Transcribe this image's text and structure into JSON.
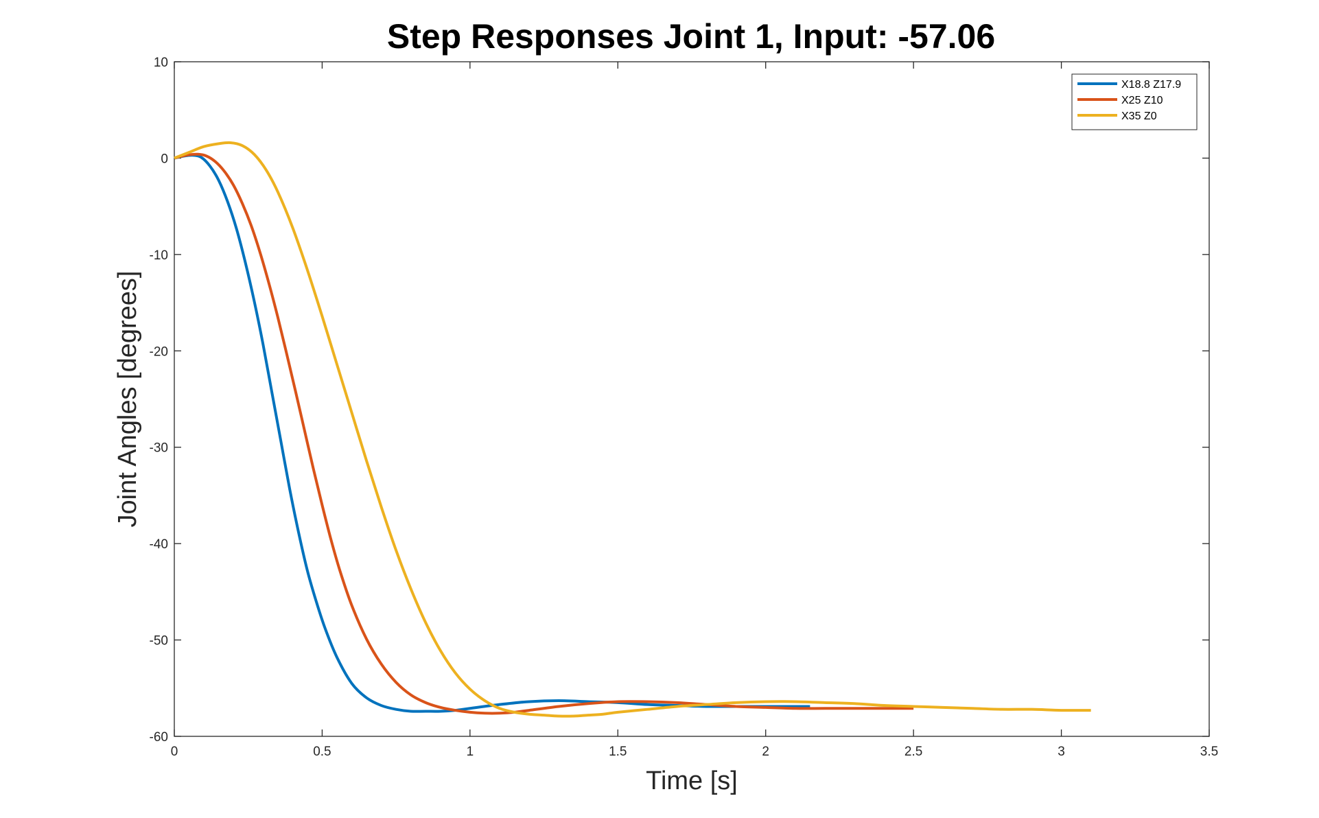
{
  "chart_data": {
    "type": "line",
    "title": "Step Responses Joint 1, Input: -57.06",
    "xlabel": "Time [s]",
    "ylabel": "Joint Angles [degrees]",
    "xlim": [
      0,
      3.5
    ],
    "ylim": [
      -60,
      10
    ],
    "xticks": [
      0,
      0.5,
      1,
      1.5,
      2,
      2.5,
      3,
      3.5
    ],
    "xtick_labels": [
      "0",
      "0.5",
      "1",
      "1.5",
      "2",
      "2.5",
      "3",
      "3.5"
    ],
    "yticks": [
      10,
      0,
      -10,
      -20,
      -30,
      -40,
      -50,
      -60
    ],
    "ytick_labels": [
      "10",
      "0",
      "-10",
      "-20",
      "-30",
      "-40",
      "-50",
      "-60"
    ],
    "grid": false,
    "legend_position": "top-right",
    "series": [
      {
        "name": "X18.8 Z17.9",
        "color": "#0072BD",
        "x": [
          0,
          0.03,
          0.06,
          0.09,
          0.12,
          0.15,
          0.18,
          0.21,
          0.24,
          0.27,
          0.3,
          0.33,
          0.36,
          0.39,
          0.42,
          0.45,
          0.48,
          0.51,
          0.55,
          0.6,
          0.65,
          0.7,
          0.75,
          0.8,
          0.85,
          0.9,
          0.95,
          1.0,
          1.1,
          1.2,
          1.3,
          1.4,
          1.5,
          1.6,
          1.7,
          1.8,
          1.9,
          2.0,
          2.1,
          2.15
        ],
        "y": [
          0,
          0.2,
          0.3,
          0.1,
          -0.8,
          -2.3,
          -4.5,
          -7.3,
          -10.8,
          -14.8,
          -19.3,
          -24.3,
          -29.3,
          -34.3,
          -38.8,
          -42.8,
          -46.0,
          -48.8,
          -51.8,
          -54.5,
          -56.0,
          -56.8,
          -57.2,
          -57.4,
          -57.4,
          -57.4,
          -57.3,
          -57.1,
          -56.7,
          -56.4,
          -56.3,
          -56.4,
          -56.5,
          -56.7,
          -56.8,
          -56.9,
          -56.9,
          -56.9,
          -56.9,
          -56.9
        ]
      },
      {
        "name": "X25 Z10",
        "color": "#D95319",
        "x": [
          0,
          0.04,
          0.08,
          0.11,
          0.14,
          0.17,
          0.2,
          0.23,
          0.26,
          0.29,
          0.32,
          0.35,
          0.38,
          0.41,
          0.44,
          0.47,
          0.5,
          0.53,
          0.56,
          0.6,
          0.65,
          0.7,
          0.75,
          0.8,
          0.85,
          0.9,
          0.95,
          1.0,
          1.05,
          1.1,
          1.15,
          1.2,
          1.3,
          1.4,
          1.5,
          1.6,
          1.7,
          1.8,
          1.9,
          2.0,
          2.1,
          2.2,
          2.3,
          2.4,
          2.5
        ],
        "y": [
          0,
          0.3,
          0.4,
          0.2,
          -0.4,
          -1.4,
          -2.8,
          -4.7,
          -7.0,
          -9.8,
          -13.0,
          -16.5,
          -20.3,
          -24.2,
          -28.2,
          -32.2,
          -36.0,
          -39.6,
          -42.8,
          -46.4,
          -49.9,
          -52.5,
          -54.4,
          -55.7,
          -56.5,
          -57.0,
          -57.3,
          -57.5,
          -57.6,
          -57.6,
          -57.5,
          -57.3,
          -56.9,
          -56.6,
          -56.4,
          -56.4,
          -56.5,
          -56.7,
          -56.9,
          -57.0,
          -57.1,
          -57.1,
          -57.1,
          -57.1,
          -57.1
        ]
      },
      {
        "name": "X35 Z0",
        "color": "#EDB120",
        "x": [
          0,
          0.05,
          0.1,
          0.15,
          0.19,
          0.23,
          0.27,
          0.31,
          0.35,
          0.4,
          0.45,
          0.5,
          0.55,
          0.6,
          0.65,
          0.7,
          0.75,
          0.8,
          0.85,
          0.9,
          0.95,
          1.0,
          1.05,
          1.1,
          1.15,
          1.2,
          1.25,
          1.3,
          1.35,
          1.4,
          1.45,
          1.5,
          1.6,
          1.7,
          1.8,
          1.9,
          2.0,
          2.1,
          2.2,
          2.3,
          2.4,
          2.5,
          2.6,
          2.7,
          2.8,
          2.9,
          3.0,
          3.1
        ],
        "y": [
          0,
          0.6,
          1.2,
          1.5,
          1.6,
          1.3,
          0.4,
          -1.2,
          -3.5,
          -7.2,
          -11.6,
          -16.4,
          -21.4,
          -26.4,
          -31.4,
          -36.2,
          -40.7,
          -44.7,
          -48.2,
          -51.1,
          -53.4,
          -55.1,
          -56.3,
          -57.1,
          -57.5,
          -57.7,
          -57.8,
          -57.9,
          -57.9,
          -57.8,
          -57.7,
          -57.5,
          -57.2,
          -56.9,
          -56.7,
          -56.5,
          -56.4,
          -56.4,
          -56.5,
          -56.6,
          -56.8,
          -56.9,
          -57.0,
          -57.1,
          -57.2,
          -57.2,
          -57.3,
          -57.3
        ]
      }
    ]
  }
}
